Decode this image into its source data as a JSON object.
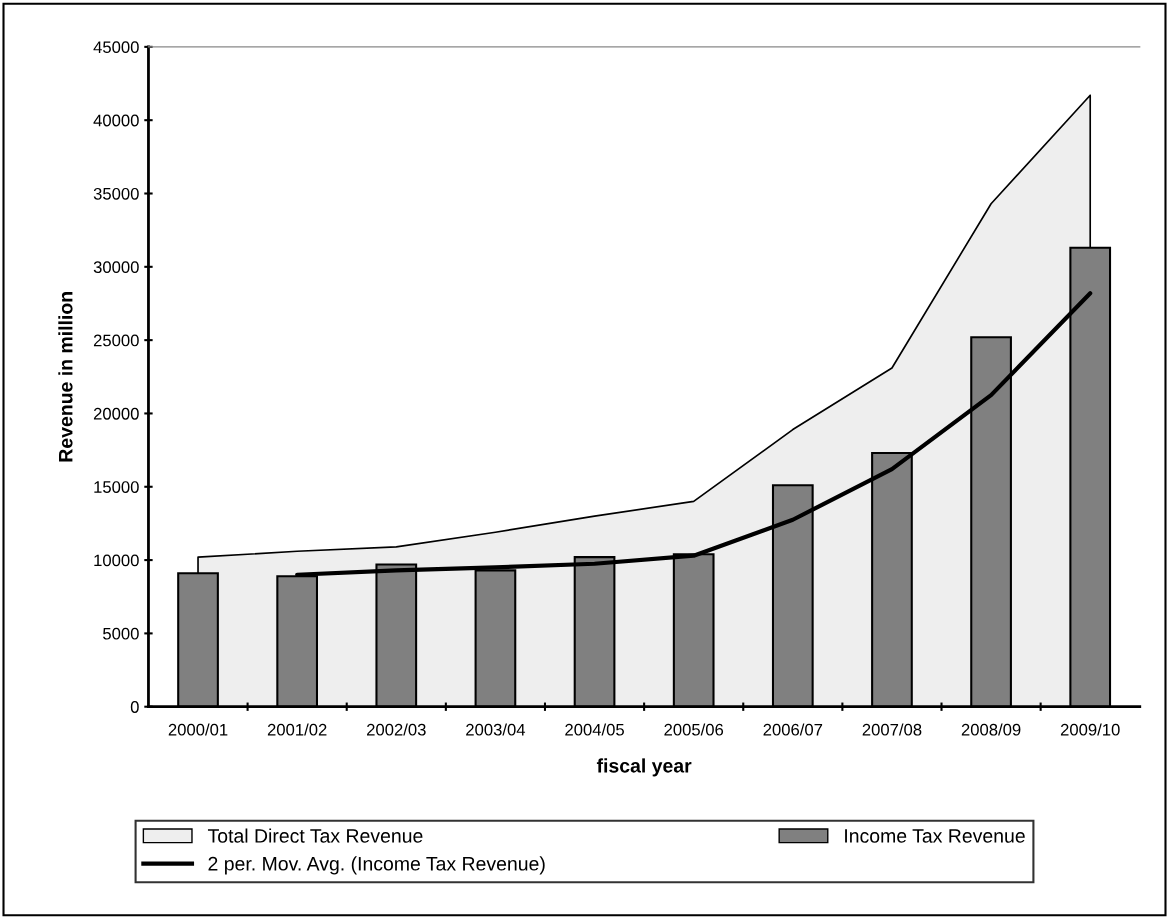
{
  "chart_data": {
    "type": "bar",
    "xlabel": "fiscal year",
    "ylabel": "Revenue in million",
    "categories": [
      "2000/01",
      "2001/02",
      "2002/03",
      "2003/04",
      "2004/05",
      "2005/06",
      "2006/07",
      "2007/08",
      "2008/09",
      "2009/10"
    ],
    "series": [
      {
        "name": "Total Direct Tax Revenue",
        "type": "area",
        "color": "#eeeeee",
        "values": [
          10200,
          10600,
          10900,
          11900,
          13000,
          14000,
          18900,
          23100,
          34300,
          41700
        ]
      },
      {
        "name": "Income Tax Revenue",
        "color": "#808080",
        "values": [
          9100,
          8900,
          9700,
          9300,
          10200,
          10400,
          15100,
          17300,
          25200,
          31300
        ]
      },
      {
        "name": "2 per. Mov. Avg. (Income Tax Revenue)",
        "type": "line",
        "color": "#000000",
        "values": [
          null,
          9000,
          9300,
          9500,
          9750,
          10300,
          12750,
          16200,
          21250,
          28200
        ]
      }
    ],
    "ylim": [
      0,
      45000
    ],
    "yticks": [
      0,
      5000,
      10000,
      15000,
      20000,
      25000,
      30000,
      35000,
      40000,
      45000
    ],
    "grid": false,
    "legend": "bottom"
  }
}
